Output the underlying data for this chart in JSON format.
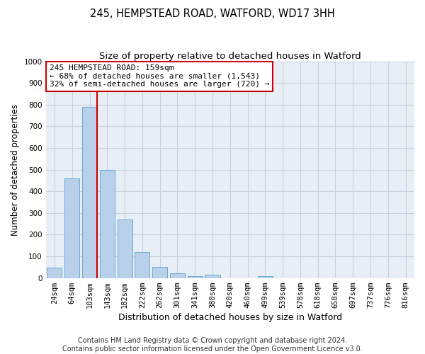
{
  "title": "245, HEMPSTEAD ROAD, WATFORD, WD17 3HH",
  "subtitle": "Size of property relative to detached houses in Watford",
  "xlabel": "Distribution of detached houses by size in Watford",
  "ylabel": "Number of detached properties",
  "categories": [
    "24sqm",
    "64sqm",
    "103sqm",
    "143sqm",
    "182sqm",
    "222sqm",
    "262sqm",
    "301sqm",
    "341sqm",
    "380sqm",
    "420sqm",
    "460sqm",
    "499sqm",
    "539sqm",
    "578sqm",
    "618sqm",
    "658sqm",
    "697sqm",
    "737sqm",
    "776sqm",
    "816sqm"
  ],
  "values": [
    48,
    460,
    790,
    500,
    270,
    120,
    52,
    22,
    10,
    14,
    0,
    0,
    10,
    0,
    0,
    0,
    0,
    0,
    0,
    0,
    0
  ],
  "bar_color": "#b8d0ea",
  "bar_edge_color": "#6aaad4",
  "vline_color": "#cc0000",
  "annotation_line1": "245 HEMPSTEAD ROAD: 159sqm",
  "annotation_line2": "← 68% of detached houses are smaller (1,543)",
  "annotation_line3": "32% of semi-detached houses are larger (720) →",
  "annotation_box_color": "#cc0000",
  "ylim": [
    0,
    1000
  ],
  "yticks": [
    0,
    100,
    200,
    300,
    400,
    500,
    600,
    700,
    800,
    900,
    1000
  ],
  "grid_color": "#c8d0dc",
  "bg_color": "#e8eef5",
  "footer_line1": "Contains HM Land Registry data © Crown copyright and database right 2024.",
  "footer_line2": "Contains public sector information licensed under the Open Government Licence v3.0.",
  "title_fontsize": 10.5,
  "subtitle_fontsize": 9.5,
  "xlabel_fontsize": 9,
  "ylabel_fontsize": 8.5,
  "tick_fontsize": 7.5,
  "annotation_fontsize": 8,
  "footer_fontsize": 7
}
